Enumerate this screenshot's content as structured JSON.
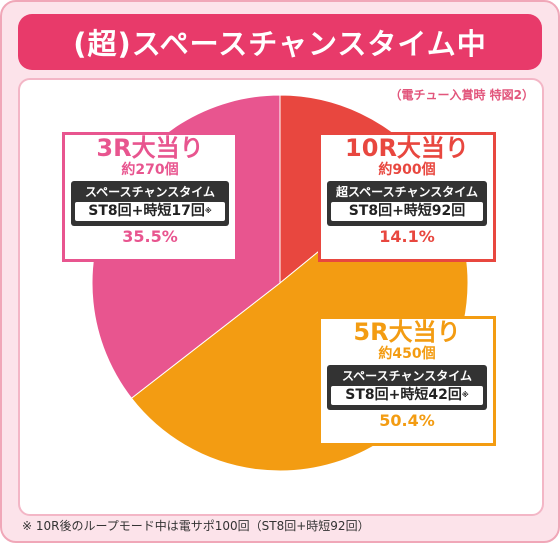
{
  "title": "(超)スペースチャンスタイム中",
  "note_top": "（電チュー入賞時 特図2）",
  "colors": {
    "slice_10r": "#e8473f",
    "slice_5r": "#f39c12",
    "slice_3r": "#e8558f",
    "title_bg": "#e83a6a",
    "frame_bg": "#fce3ea"
  },
  "chart_data": {
    "type": "pie",
    "slices": [
      {
        "label": "10R大当り",
        "count": "約900個",
        "mode": "超スペースチャンスタイム",
        "st": "ST8回+時短92回",
        "mark": "",
        "value": 14.1,
        "pct_label": "14.1%"
      },
      {
        "label": "5R大当り",
        "count": "約450個",
        "mode": "スペースチャンスタイム",
        "st": "ST8回+時短42回",
        "mark": "※",
        "value": 50.4,
        "pct_label": "50.4%"
      },
      {
        "label": "3R大当り",
        "count": "約270個",
        "mode": "スペースチャンスタイム",
        "st": "ST8回+時短17回",
        "mark": "※",
        "value": 35.5,
        "pct_label": "35.5%"
      }
    ]
  },
  "footnote": "※ 10R後のループモード中は電サポ100回（ST8回+時短92回）"
}
